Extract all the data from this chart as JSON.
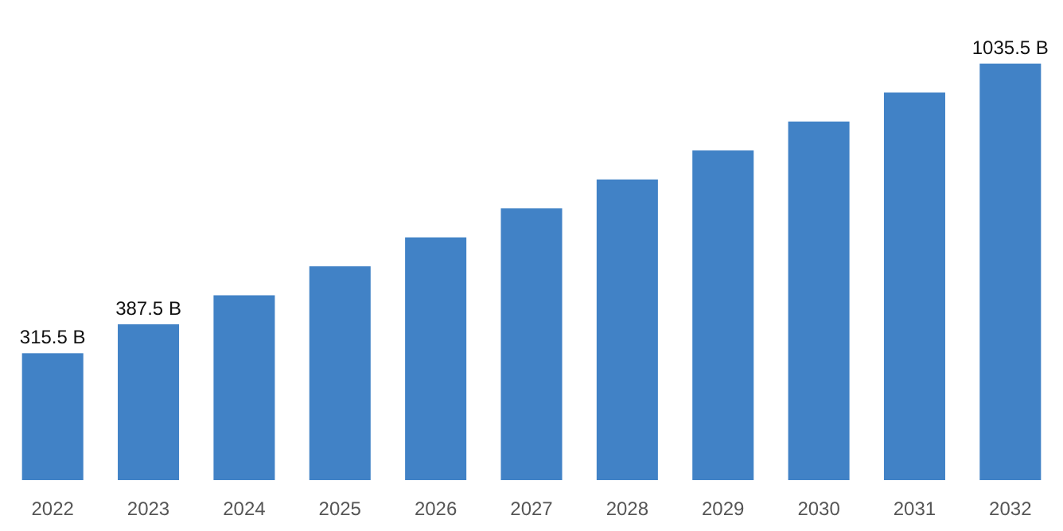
{
  "chart_data": {
    "type": "bar",
    "categories": [
      "2022",
      "2023",
      "2024",
      "2025",
      "2026",
      "2027",
      "2028",
      "2029",
      "2030",
      "2031",
      "2032"
    ],
    "values": [
      315.5,
      387.5,
      459.5,
      531.5,
      603.5,
      675.5,
      747.5,
      819.5,
      891.5,
      963.5,
      1035.5
    ],
    "value_labels": [
      "315.5 B",
      "387.5 B",
      null,
      null,
      null,
      null,
      null,
      null,
      null,
      null,
      "1035.5 B"
    ],
    "color": "#4182c6"
  }
}
